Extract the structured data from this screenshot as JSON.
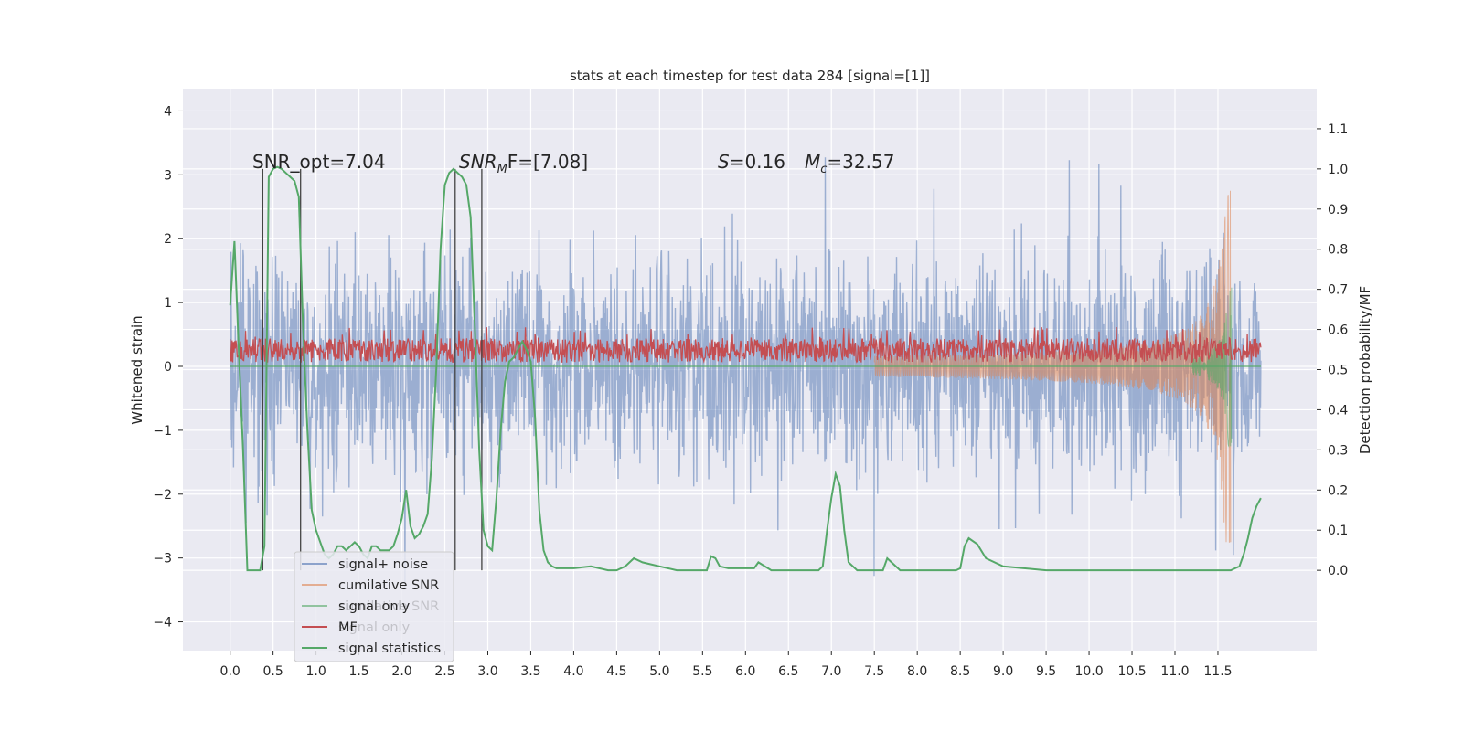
{
  "chart_data": {
    "type": "line",
    "title": "stats at each timestep for test data 284 [signal=[1]]",
    "xlabel": "",
    "ylabel": "Whitened strain",
    "ylabel_right": "Detection probability/MF",
    "xlim": [
      -0.55,
      12.65
    ],
    "ylim": [
      -4.45,
      4.35
    ],
    "ylim_right": [
      -0.2,
      1.2
    ],
    "x_ticks": [
      "0.0",
      "0.5",
      "1.0",
      "1.5",
      "2.0",
      "2.5",
      "3.0",
      "3.5",
      "4.0",
      "4.5",
      "5.0",
      "5.5",
      "6.0",
      "6.5",
      "7.0",
      "7.5",
      "8.0",
      "8.5",
      "9.0",
      "9.5",
      "10.0",
      "10.5",
      "11.0",
      "11.5"
    ],
    "y_ticks_left": [
      "4",
      "3",
      "2",
      "1",
      "0",
      "−1",
      "−2",
      "−3",
      "−4"
    ],
    "y_ticks_right": [
      "1.1",
      "1.0",
      "0.9",
      "0.8",
      "0.7",
      "0.6",
      "0.5",
      "0.4",
      "0.3",
      "0.2",
      "0.1",
      "0.0"
    ],
    "annotations": {
      "snr_opt": "SNR_opt=7.04",
      "snr_mf_name": "SNR",
      "snr_mf_sub": "M",
      "snr_mf_rest": "F=[7.08]",
      "s_name": "S",
      "s_rest": "=0.16",
      "mc_name": "M",
      "mc_sub": "c",
      "mc_rest": "=32.57"
    },
    "legend": [
      "signal+ noise",
      "cumilative SNR",
      "signal only",
      "MF",
      "signal statistics"
    ],
    "legend_ghost": [
      "cumilative SNR",
      "signal only"
    ],
    "series": [
      {
        "name": "signal+ noise",
        "color": "#4c72b0",
        "style": "dense noise, amplitude ~ ±3 to ±4 whitened strain, t 0.0–12.0"
      },
      {
        "name": "cumilative SNR",
        "color": "#dd8452",
        "style": "chirp oscillation growing from ~0 at t=7.5 to ~±2.7 at t=11.65"
      },
      {
        "name": "signal only",
        "color": "#55a868",
        "style": "chirp near t=11.6, amplitude up to ~1.2"
      },
      {
        "name": "MF",
        "color": "#c44e52",
        "style": "positive noise band, 0 to ~0.6"
      },
      {
        "name": "signal statistics",
        "color": "#55a868",
        "axis": "right",
        "x": [
          0.0,
          0.05,
          0.1,
          0.15,
          0.2,
          0.25,
          0.3,
          0.35,
          0.4,
          0.45,
          0.5,
          0.55,
          0.6,
          0.65,
          0.7,
          0.75,
          0.8,
          0.85,
          0.9,
          0.95,
          1.0,
          1.05,
          1.1,
          1.15,
          1.2,
          1.25,
          1.3,
          1.35,
          1.4,
          1.45,
          1.5,
          1.55,
          1.6,
          1.65,
          1.7,
          1.75,
          1.8,
          1.85,
          1.9,
          1.95,
          2.0,
          2.05,
          2.1,
          2.15,
          2.2,
          2.25,
          2.3,
          2.35,
          2.4,
          2.45,
          2.5,
          2.55,
          2.6,
          2.65,
          2.7,
          2.75,
          2.8,
          2.85,
          2.9,
          2.95,
          3.0,
          3.05,
          3.1,
          3.15,
          3.2,
          3.25,
          3.3,
          3.35,
          3.4,
          3.45,
          3.5,
          3.55,
          3.6,
          3.65,
          3.7,
          3.75,
          3.8,
          3.85,
          3.9,
          3.95,
          4.0,
          4.2,
          4.4,
          4.5,
          4.6,
          4.7,
          4.8,
          4.9,
          5.0,
          5.2,
          5.4,
          5.55,
          5.6,
          5.65,
          5.7,
          5.8,
          6.0,
          6.1,
          6.15,
          6.3,
          6.6,
          6.85,
          6.9,
          6.95,
          7.0,
          7.05,
          7.1,
          7.15,
          7.2,
          7.3,
          7.5,
          7.6,
          7.65,
          7.7,
          7.8,
          8.0,
          8.45,
          8.5,
          8.55,
          8.6,
          8.7,
          8.8,
          9.0,
          9.5,
          10.0,
          10.5,
          11.0,
          11.5,
          11.6,
          11.65,
          11.7,
          11.75,
          11.8,
          11.85,
          11.9,
          11.95,
          12.0
        ],
        "y": [
          0.66,
          0.82,
          0.55,
          0.3,
          0.0,
          0.0,
          0.0,
          0.0,
          0.06,
          0.98,
          1.0,
          1.005,
          1.0,
          0.99,
          0.98,
          0.97,
          0.93,
          0.6,
          0.35,
          0.15,
          0.1,
          0.07,
          0.04,
          0.03,
          0.04,
          0.06,
          0.06,
          0.05,
          0.06,
          0.07,
          0.06,
          0.04,
          0.03,
          0.06,
          0.06,
          0.05,
          0.05,
          0.05,
          0.06,
          0.09,
          0.13,
          0.2,
          0.11,
          0.08,
          0.09,
          0.11,
          0.14,
          0.28,
          0.5,
          0.8,
          0.96,
          0.99,
          1.0,
          0.99,
          0.98,
          0.96,
          0.88,
          0.6,
          0.3,
          0.1,
          0.06,
          0.05,
          0.18,
          0.35,
          0.47,
          0.52,
          0.53,
          0.55,
          0.57,
          0.55,
          0.52,
          0.38,
          0.15,
          0.05,
          0.02,
          0.01,
          0.005,
          0.005,
          0.005,
          0.005,
          0.005,
          0.01,
          0.0,
          0.0,
          0.01,
          0.03,
          0.02,
          0.015,
          0.01,
          0.0,
          0.0,
          0.0,
          0.035,
          0.03,
          0.01,
          0.005,
          0.005,
          0.005,
          0.02,
          0.0,
          0.0,
          0.0,
          0.01,
          0.1,
          0.18,
          0.24,
          0.21,
          0.1,
          0.02,
          0.0,
          0.0,
          0.0,
          0.03,
          0.02,
          0.0,
          0.0,
          0.0,
          0.005,
          0.06,
          0.08,
          0.065,
          0.03,
          0.01,
          0.0,
          0.0,
          0.0,
          0.0,
          0.0,
          0.0,
          0.0,
          0.005,
          0.01,
          0.04,
          0.08,
          0.13,
          0.16,
          0.18
        ]
      }
    ],
    "vertical_markers": [
      0.38,
      0.82,
      2.62,
      2.93
    ]
  }
}
